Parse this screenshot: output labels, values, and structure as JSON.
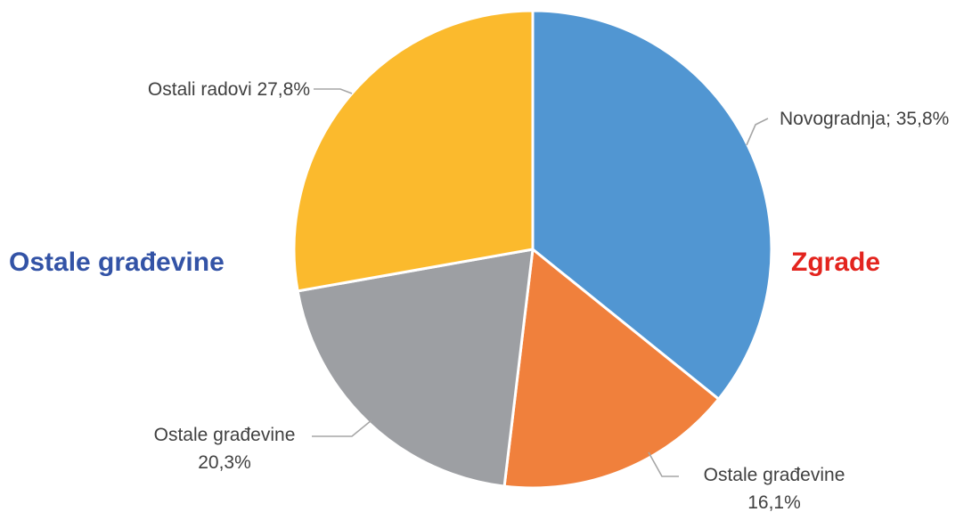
{
  "chart_data": {
    "type": "pie",
    "title": "",
    "slices": [
      {
        "label": "Novogradnja",
        "label_text": "Novogradnja; 35,8%",
        "value": 35.8,
        "color": "#5196D2"
      },
      {
        "label": "Ostale građevine",
        "label_text": "Ostale građevine",
        "label_value": "16,1%",
        "value": 16.1,
        "color": "#F0803C"
      },
      {
        "label": "Ostale građevine",
        "label_text": "Ostale građevine",
        "label_value": "20,3%",
        "value": 20.3,
        "color": "#9D9FA3"
      },
      {
        "label": "Ostali radovi",
        "label_text": "Ostali radovi 27,8%",
        "value": 27.8,
        "color": "#FBBA2D"
      }
    ],
    "group_labels": {
      "left": {
        "text": "Ostale građevine",
        "color": "#3353A6"
      },
      "right": {
        "text": "Zgrade",
        "color": "#E3241E"
      }
    },
    "start_angle_deg": 0,
    "direction": "clockwise",
    "legend": "none"
  }
}
